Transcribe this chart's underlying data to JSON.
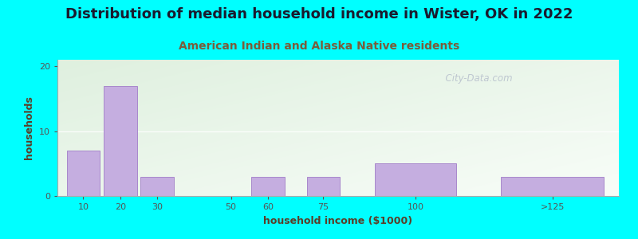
{
  "title": "Distribution of median household income in Wister, OK in 2022",
  "subtitle": "American Indian and Alaska Native residents",
  "xlabel": "household income ($1000)",
  "ylabel": "households",
  "background_color": "#00FFFF",
  "plot_bg_color_top_left": "#dff0df",
  "plot_bg_color_bottom_right": "#f8fdf8",
  "bar_color": "#c5aee0",
  "bar_edge_color": "#a888cc",
  "values": [
    7,
    17,
    3,
    0,
    3,
    3,
    5,
    3
  ],
  "bar_centers": [
    10,
    20,
    30,
    50,
    60,
    75,
    100,
    137
  ],
  "bar_widths": [
    9,
    9,
    9,
    9,
    9,
    9,
    22,
    28
  ],
  "xlim": [
    3,
    155
  ],
  "ylim": [
    0,
    21
  ],
  "yticks": [
    0,
    10,
    20
  ],
  "xtick_positions": [
    10,
    20,
    30,
    50,
    60,
    75,
    100,
    137
  ],
  "xtick_labels": [
    "10",
    "20",
    "30",
    "50",
    "60",
    "75",
    "100",
    ">125"
  ],
  "title_fontsize": 13,
  "subtitle_fontsize": 10,
  "axis_label_fontsize": 9,
  "tick_fontsize": 8,
  "watermark": "  City-Data.com"
}
